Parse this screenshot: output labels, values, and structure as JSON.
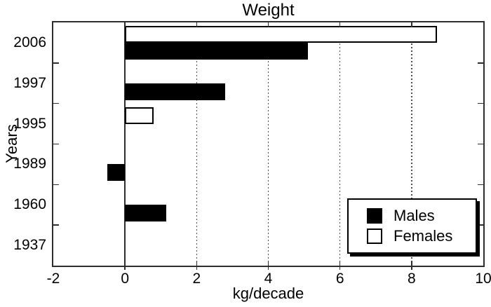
{
  "chart_data": {
    "type": "bar",
    "orientation": "horizontal",
    "title": "Weight",
    "xlabel": "kg/decade",
    "ylabel": "Years",
    "categories": [
      "2006",
      "1997",
      "1995",
      "1989",
      "1960",
      "1937"
    ],
    "series": [
      {
        "name": "Males",
        "fill": "#000000",
        "values": [
          5.1,
          2.8,
          0,
          -0.5,
          1.15,
          0
        ]
      },
      {
        "name": "Females",
        "fill": "#ffffff",
        "values": [
          8.7,
          0,
          0.8,
          0,
          0,
          0
        ]
      }
    ],
    "xlim": [
      -2,
      10
    ],
    "xticks": [
      -2,
      0,
      2,
      4,
      6,
      8,
      10
    ],
    "gridlines_x": [
      2,
      4,
      6,
      8
    ],
    "grid_style": "dotted-vertical",
    "zero_line": true,
    "legend": {
      "position": "lower-right",
      "items": [
        "Males",
        "Females"
      ]
    }
  },
  "colors": {
    "background": "#ffffff",
    "axis": "#2e2e2e",
    "grid": "#4d4d4d",
    "bar_males": "#000000",
    "bar_females": "#ffffff",
    "text": "#000000"
  }
}
